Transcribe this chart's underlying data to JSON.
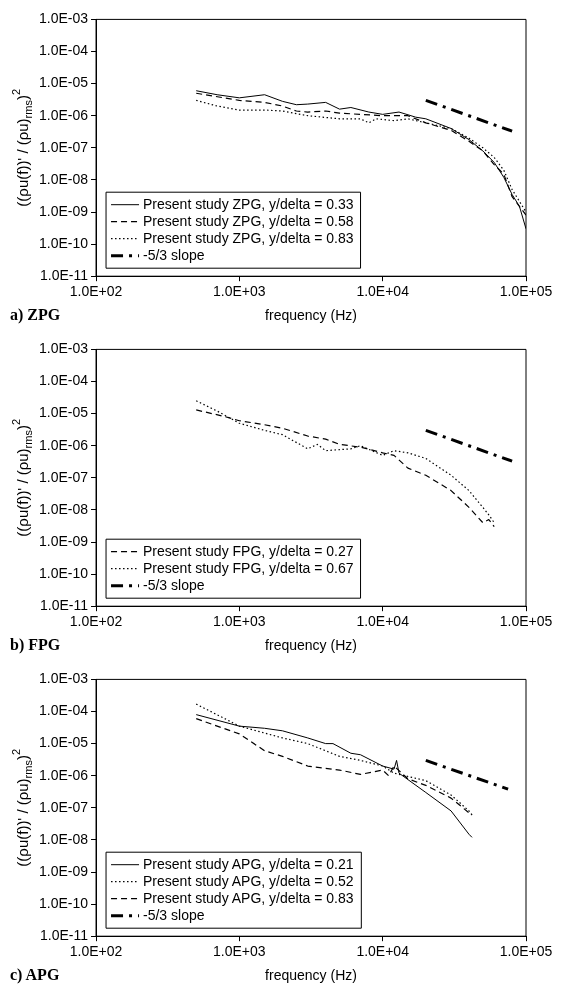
{
  "chart_data": [
    {
      "type": "line",
      "xlabel": "frequency (Hz)",
      "ylabel": "((ρu(f))' / (ρu)$_{rms}$)$^{2}$",
      "annotations": [
        "a) ZPG"
      ],
      "log": "xy",
      "grid": false,
      "legend": "bottom left",
      "xlim": [
        100,
        100000
      ],
      "xticks": [
        {
          "value": 100,
          "label": "1.0E+02"
        },
        {
          "value": 1000,
          "label": "1.0E+03"
        },
        {
          "value": 10000,
          "label": "1.0E+04"
        },
        {
          "value": 100000,
          "label": "1.0E+05"
        }
      ],
      "ylim": [
        1e-11,
        0.001
      ],
      "yticks": [
        {
          "value": 1e-11,
          "label": "1.0E-11"
        },
        {
          "value": 1e-10,
          "label": "1.0E-10"
        },
        {
          "value": 1e-09,
          "label": "1.0E-09"
        },
        {
          "value": 1e-08,
          "label": "1.0E-08"
        },
        {
          "value": 1e-07,
          "label": "1.0E-07"
        },
        {
          "value": 1e-06,
          "label": "1.0E-06"
        },
        {
          "value": 1e-05,
          "label": "1.0E-05"
        },
        {
          "value": 0.0001,
          "label": "1.0E-04"
        },
        {
          "value": 0.001,
          "label": "1.0E-03"
        }
      ],
      "series": [
        {
          "name": "Present study ZPG, y/delta = 0.33",
          "color": "#000000",
          "line_style": "solid",
          "x": [
            500,
            700,
            1000,
            1500,
            2000,
            2500,
            3000,
            4000,
            5000,
            6000,
            8000,
            10000,
            13000,
            17000,
            20000,
            30000,
            40000,
            50000,
            60000,
            70000,
            80000,
            90000,
            100000
          ],
          "values": [
            6e-06,
            4.5e-06,
            3.6e-06,
            4.5e-06,
            2.8e-06,
            2.2e-06,
            2.3e-06,
            2.6e-06,
            1.6e-06,
            1.8e-06,
            1.3e-06,
            1.1e-06,
            1.3e-06,
            9e-07,
            8e-07,
            4e-07,
            1.8e-07,
            8e-08,
            3.5e-08,
            1.2e-08,
            3.5e-09,
            1.5e-09,
            3e-10
          ]
        },
        {
          "name": "Present study ZPG, y/delta = 0.58",
          "color": "#000000",
          "line_style": "dashed",
          "x": [
            500,
            1000,
            1500,
            2000,
            2500,
            3000,
            4000,
            5000,
            7000,
            10000,
            15000,
            20000,
            30000,
            40000,
            50000,
            60000,
            70000,
            80000,
            100000
          ],
          "values": [
            5e-06,
            3e-06,
            2.6e-06,
            2e-06,
            1.4e-06,
            1.3e-06,
            1.4e-06,
            1.2e-06,
            1.1e-06,
            1e-06,
            1e-06,
            6e-07,
            3.5e-07,
            1.6e-07,
            8e-08,
            3e-08,
            1.5e-08,
            3e-09,
            8e-10
          ]
        },
        {
          "name": "Present study ZPG, y/delta = 0.83",
          "color": "#000000",
          "line_style": "dotted",
          "x": [
            500,
            700,
            1000,
            1500,
            2000,
            3000,
            5000,
            7000,
            8000,
            9000,
            12000,
            15000,
            20000,
            30000,
            40000,
            50000,
            60000,
            70000,
            80000,
            100000
          ],
          "values": [
            3e-06,
            2e-06,
            1.5e-06,
            1.5e-06,
            1.4e-06,
            1e-06,
            8e-07,
            8e-07,
            6e-07,
            8e-07,
            7e-07,
            8e-07,
            6e-07,
            4e-07,
            2e-07,
            1e-07,
            5e-08,
            2e-08,
            5e-09,
            1e-09
          ]
        },
        {
          "name": "-5/3 slope",
          "color": "#000000",
          "line_style": "dashdot",
          "x": [
            20000,
            80000
          ],
          "values": [
            3e-06,
            3.3e-07
          ]
        }
      ]
    },
    {
      "type": "line",
      "xlabel": "frequency (Hz)",
      "ylabel": "((ρu(f))' / (ρu)$_{rms}$)$^{2}$",
      "annotations": [
        "b) FPG"
      ],
      "log": "xy",
      "grid": false,
      "legend": "bottom left",
      "xlim": [
        100,
        100000
      ],
      "xticks": [
        {
          "value": 100,
          "label": "1.0E+02"
        },
        {
          "value": 1000,
          "label": "1.0E+03"
        },
        {
          "value": 10000,
          "label": "1.0E+04"
        },
        {
          "value": 100000,
          "label": "1.0E+05"
        }
      ],
      "ylim": [
        1e-11,
        0.001
      ],
      "yticks": [
        {
          "value": 1e-11,
          "label": "1.0E-11"
        },
        {
          "value": 1e-10,
          "label": "1.0E-10"
        },
        {
          "value": 1e-09,
          "label": "1.0E-09"
        },
        {
          "value": 1e-08,
          "label": "1.0E-08"
        },
        {
          "value": 1e-07,
          "label": "1.0E-07"
        },
        {
          "value": 1e-06,
          "label": "1.0E-06"
        },
        {
          "value": 1e-05,
          "label": "1.0E-05"
        },
        {
          "value": 0.0001,
          "label": "1.0E-04"
        },
        {
          "value": 0.001,
          "label": "1.0E-03"
        }
      ],
      "series": [
        {
          "name": "Present study FPG, y/delta = 0.27",
          "color": "#000000",
          "line_style": "dashed",
          "x": [
            500,
            800,
            1000,
            1500,
            2000,
            3000,
            4000,
            5000,
            7000,
            10000,
            12000,
            15000,
            20000,
            30000,
            40000,
            50000,
            55000,
            60000
          ],
          "values": [
            1.3e-05,
            8e-06,
            6e-06,
            4.5e-06,
            3.5e-06,
            2e-06,
            1.6e-06,
            1.1e-06,
            9e-07,
            6e-07,
            5e-07,
            2e-07,
            1.2e-07,
            4e-08,
            1.2e-08,
            4e-09,
            5e-09,
            3e-09
          ]
        },
        {
          "name": "Present study FPG, y/delta = 0.67",
          "color": "#000000",
          "line_style": "dotted",
          "x": [
            500,
            700,
            1000,
            1500,
            2000,
            3000,
            3500,
            4000,
            6000,
            7000,
            10000,
            12000,
            15000,
            20000,
            30000,
            40000,
            50000,
            55000,
            60000
          ],
          "values": [
            2.5e-05,
            1.2e-05,
            5e-06,
            3e-06,
            2.2e-06,
            8e-07,
            1.1e-06,
            7e-07,
            8e-07,
            1e-06,
            5e-07,
            7e-07,
            6e-07,
            4e-07,
            1.2e-07,
            4e-08,
            1.2e-08,
            7e-09,
            4e-09
          ]
        },
        {
          "name": "-5/3 slope",
          "color": "#000000",
          "line_style": "dashdot",
          "x": [
            20000,
            80000
          ],
          "values": [
            3e-06,
            3.3e-07
          ]
        }
      ]
    },
    {
      "type": "line",
      "xlabel": "frequency (Hz)",
      "ylabel": "((ρu(f))' / (ρu)$_{rms}$)$^{2}$",
      "annotations": [
        "c) APG"
      ],
      "log": "xy",
      "grid": false,
      "legend": "bottom left",
      "xlim": [
        100,
        100000
      ],
      "xticks": [
        {
          "value": 100,
          "label": "1.0E+02"
        },
        {
          "value": 1000,
          "label": "1.0E+03"
        },
        {
          "value": 10000,
          "label": "1.0E+04"
        },
        {
          "value": 100000,
          "label": "1.0E+05"
        }
      ],
      "ylim": [
        1e-11,
        0.001
      ],
      "yticks": [
        {
          "value": 1e-11,
          "label": "1.0E-11"
        },
        {
          "value": 1e-10,
          "label": "1.0E-10"
        },
        {
          "value": 1e-09,
          "label": "1.0E-09"
        },
        {
          "value": 1e-08,
          "label": "1.0E-08"
        },
        {
          "value": 1e-07,
          "label": "1.0E-07"
        },
        {
          "value": 1e-06,
          "label": "1.0E-06"
        },
        {
          "value": 1e-05,
          "label": "1.0E-05"
        },
        {
          "value": 0.0001,
          "label": "1.0E-04"
        },
        {
          "value": 0.001,
          "label": "1.0E-03"
        }
      ],
      "series": [
        {
          "name": "Present study APG, y/delta = 0.21",
          "color": "#000000",
          "line_style": "solid",
          "x": [
            500,
            1000,
            1500,
            2000,
            3000,
            4000,
            4500,
            6000,
            7000,
            10000,
            12000,
            12500,
            13000,
            20000,
            30000,
            40000,
            42000
          ],
          "values": [
            8e-05,
            3.5e-05,
            3e-05,
            2.5e-05,
            1.5e-05,
            1e-05,
            1e-05,
            5e-06,
            4.5e-06,
            2e-06,
            1.6e-06,
            3e-06,
            1.2e-06,
            3e-07,
            8e-08,
            1.5e-08,
            1.2e-08
          ]
        },
        {
          "name": "Present study APG, y/delta = 0.52",
          "color": "#000000",
          "line_style": "dotted",
          "x": [
            500,
            1000,
            2000,
            3000,
            5000,
            7000,
            10000,
            12000,
            20000,
            30000,
            40000,
            42000
          ],
          "values": [
            0.00017,
            3.5e-05,
            1.5e-05,
            1e-05,
            4e-06,
            3e-06,
            2e-06,
            1.2e-06,
            7e-07,
            2.5e-07,
            8e-08,
            6e-08
          ]
        },
        {
          "name": "Present study APG, y/delta = 0.83",
          "color": "#000000",
          "line_style": "dashed",
          "x": [
            500,
            1000,
            1500,
            2000,
            3000,
            5000,
            7000,
            10000,
            11000,
            12000,
            15000,
            20000,
            30000,
            40000,
            42000
          ],
          "values": [
            6e-05,
            2e-05,
            6e-06,
            4e-06,
            2e-06,
            1.5e-06,
            1.1e-06,
            1.5e-06,
            1e-06,
            2e-06,
            8e-07,
            5e-07,
            2e-07,
            7e-08,
            6e-08
          ]
        },
        {
          "name": "-5/3 slope",
          "color": "#000000",
          "line_style": "dashdot",
          "x": [
            20000,
            75000
          ],
          "values": [
            3e-06,
            3.8e-07
          ]
        }
      ]
    }
  ]
}
